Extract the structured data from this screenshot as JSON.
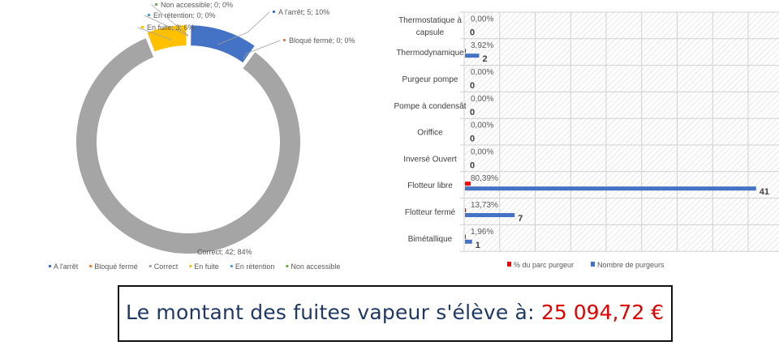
{
  "chart_data": [
    {
      "type": "pie",
      "variant": "donut",
      "title": "",
      "slices": [
        {
          "name": "A l'arrêt",
          "value": 5,
          "percent": "10%",
          "color": "#4472c4"
        },
        {
          "name": "Bloqué fermé",
          "value": 0,
          "percent": "0%",
          "color": "#ed7d31"
        },
        {
          "name": "Correct",
          "value": 42,
          "percent": "84%",
          "color": "#a5a5a5"
        },
        {
          "name": "En fuite",
          "value": 3,
          "percent": "6%",
          "color": "#ffc000"
        },
        {
          "name": "En rétention",
          "value": 0,
          "percent": "0%",
          "color": "#5b9bd5"
        },
        {
          "name": "Non accessible",
          "value": 0,
          "percent": "0%",
          "color": "#70ad47"
        }
      ],
      "legend_position": "bottom"
    },
    {
      "type": "bar",
      "orientation": "horizontal",
      "categories": [
        "Thermostatique à capsule",
        "Thermodynamique",
        "Purgeur pompe",
        "Pompe à condensât",
        "Oriffice",
        "Inversé Ouvert",
        "Flotteur libre",
        "Flotteur fermé",
        "Bimétallique"
      ],
      "series": [
        {
          "name": "% du parc purgeur",
          "values": [
            0,
            0.0392,
            0,
            0,
            0,
            0,
            0.8039,
            0.1373,
            0.0196
          ],
          "labels": [
            "0,00%",
            "3,92%",
            "0,00%",
            "0,00%",
            "0,00%",
            "0,00%",
            "80,39%",
            "13,73%",
            "1,96%"
          ],
          "color": "#ff0000"
        },
        {
          "name": "Nombre de purgeurs",
          "values": [
            0,
            2,
            0,
            0,
            0,
            0,
            41,
            7,
            1
          ],
          "labels": [
            "0",
            "2",
            "0",
            "0",
            "0",
            "0",
            "41",
            "7",
            "1"
          ],
          "color": "#4472c4"
        }
      ],
      "xlim": [
        0,
        45
      ],
      "grid": true,
      "legend_position": "bottom"
    }
  ],
  "summary": {
    "label": "Le montant des fuites vapeur s'élève à:",
    "value": "25 094,72 €"
  }
}
